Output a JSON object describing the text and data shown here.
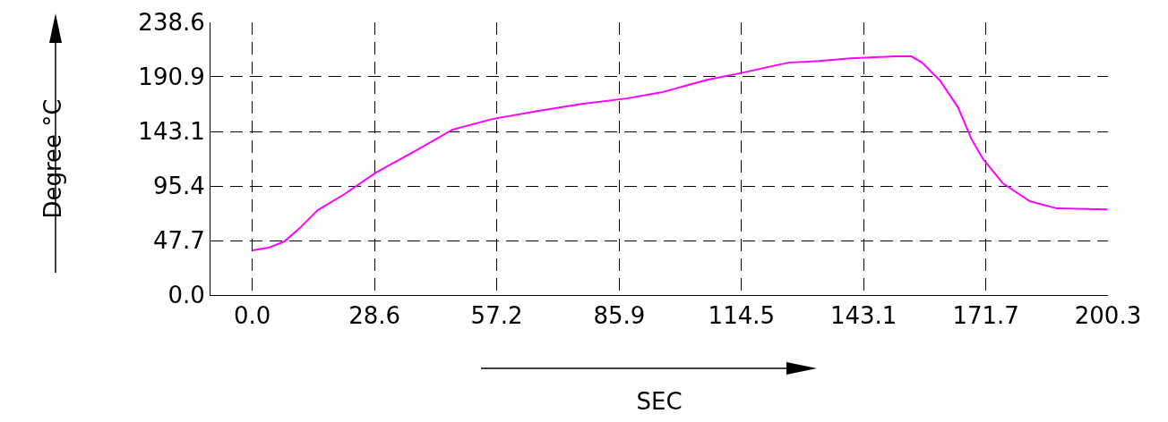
{
  "chart_data": {
    "type": "line",
    "xlabel": "SEC",
    "ylabel": "Degree °C",
    "x": [
      0,
      3.8,
      7.5,
      11.1,
      15.3,
      21.6,
      28.9,
      38.4,
      46.8,
      56.2,
      66.7,
      77.1,
      87.6,
      96,
      106.5,
      114.9,
      125.4,
      132.7,
      140,
      150.5,
      154.3,
      156.8,
      161,
      165.2,
      168.3,
      171.1,
      175.7,
      182,
      188.3,
      200.2
    ],
    "series": [
      {
        "color": "#ff00ff",
        "values": [
          39.1,
          41.4,
          46.9,
          58.6,
          74.3,
          88.4,
          107.1,
          126.7,
          144.6,
          154,
          161,
          167.3,
          172,
          177.5,
          188.4,
          194.7,
          203.3,
          204.8,
          207.2,
          208.8,
          208.8,
          203.3,
          187.6,
          164.2,
          136.8,
          118.8,
          97.7,
          82.1,
          75.8,
          75
        ]
      }
    ],
    "xlim": [
      -9.8,
      200.3
    ],
    "xticks": [
      "0.0",
      28.6,
      57.2,
      85.9,
      114.5,
      143.1,
      171.7,
      200.3
    ],
    "ylim": [
      0,
      238.6
    ],
    "yticks": [
      "0.0",
      47.7,
      95.4,
      143.1,
      190.9,
      238.6
    ],
    "grid": true,
    "marker": "none",
    "line_style": "solid"
  }
}
